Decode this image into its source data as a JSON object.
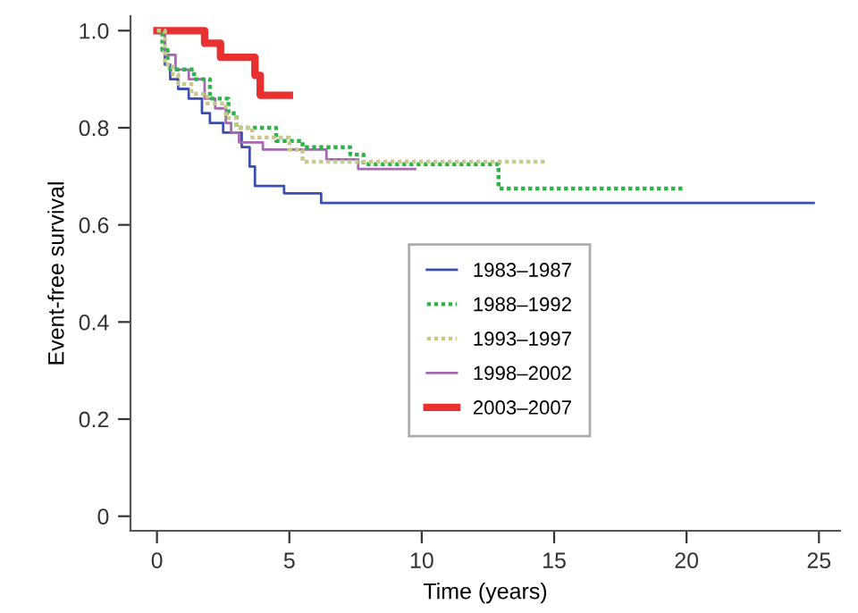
{
  "chart_data": {
    "type": "step",
    "xlabel": "Time (years)",
    "ylabel": "Event-free survival",
    "xlim": [
      -1,
      25.8
    ],
    "ylim": [
      -0.03,
      1.03
    ],
    "xticks": [
      0,
      5,
      10,
      15,
      20,
      25
    ],
    "yticks": [
      {
        "value": 0,
        "label": "0"
      },
      0.2,
      0.4,
      0.6,
      0.8,
      {
        "value": 1.0,
        "label": "1.0"
      }
    ],
    "legend": "center",
    "grid": false,
    "series": [
      {
        "name": "1983–1987",
        "color": "#3a4fb0",
        "line_style": "solid",
        "x": [
          0,
          0.3,
          0.5,
          0.8,
          1.2,
          1.7,
          2.0,
          2.5,
          3.2,
          3.5,
          3.7,
          4.8,
          6.2,
          24.8
        ],
        "values": [
          1.0,
          0.93,
          0.9,
          0.88,
          0.86,
          0.83,
          0.81,
          0.79,
          0.76,
          0.72,
          0.68,
          0.665,
          0.645,
          0.645
        ]
      },
      {
        "name": "1988–1992",
        "color": "#2db34a",
        "line_style": "dotted",
        "x": [
          0,
          0.2,
          0.4,
          0.5,
          1.4,
          2.0,
          2.7,
          3.0,
          4.5,
          5.5,
          7.3,
          7.8,
          12.9,
          19.95
        ],
        "values": [
          1.0,
          0.96,
          0.93,
          0.92,
          0.9,
          0.86,
          0.83,
          0.8,
          0.773,
          0.76,
          0.745,
          0.725,
          0.675,
          0.675
        ]
      },
      {
        "name": "1993–1997",
        "color": "#c8c88a",
        "line_style": "dotted",
        "x": [
          0,
          0.3,
          0.6,
          0.8,
          1.3,
          1.9,
          2.6,
          3.0,
          3.6,
          5.0,
          5.5,
          14.7
        ],
        "values": [
          1.0,
          0.93,
          0.91,
          0.89,
          0.87,
          0.85,
          0.82,
          0.8,
          0.78,
          0.755,
          0.73,
          0.73
        ]
      },
      {
        "name": "1998–2002",
        "color": "#a469b0",
        "line_style": "solid",
        "x": [
          0,
          0.3,
          0.7,
          1.2,
          1.8,
          2.2,
          2.6,
          2.8,
          3.1,
          4.0,
          6.4,
          7.6,
          9.75
        ],
        "values": [
          1.0,
          0.95,
          0.92,
          0.9,
          0.86,
          0.84,
          0.81,
          0.79,
          0.77,
          0.755,
          0.735,
          0.715,
          0.715
        ]
      },
      {
        "name": "2003–2007",
        "color": "#e83030",
        "line_style": "solid",
        "x": [
          0,
          1.8,
          2.4,
          3.7,
          3.9,
          5.0
        ],
        "values": [
          1.0,
          0.974,
          0.945,
          0.908,
          0.867,
          0.867
        ]
      }
    ]
  }
}
